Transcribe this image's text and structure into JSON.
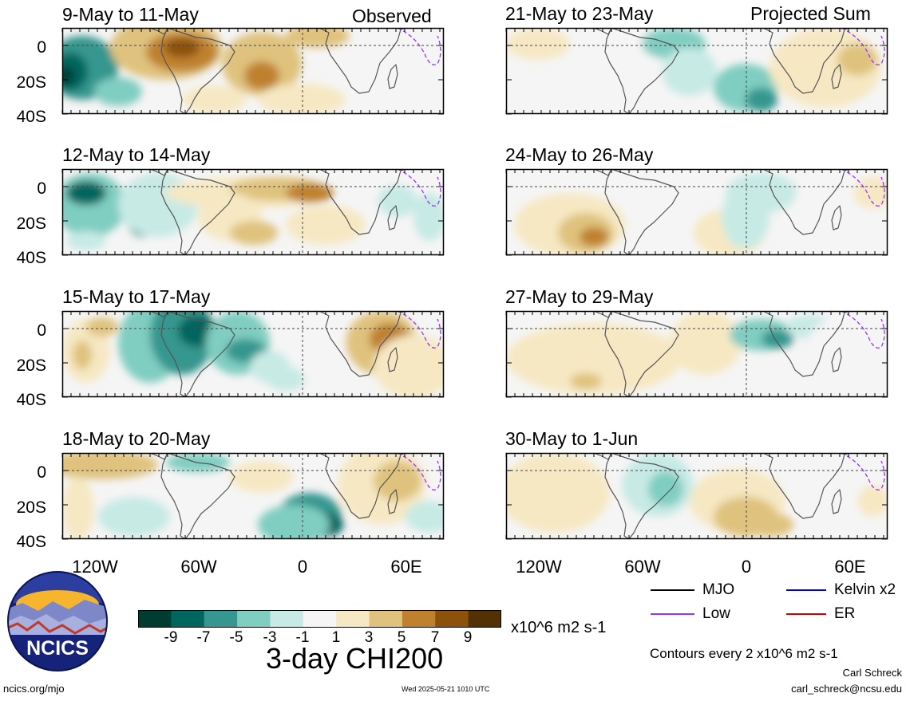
{
  "column_titles": {
    "left": "Observed",
    "right": "Projected Sum"
  },
  "panels_left": [
    {
      "title": "9-May to 11-May"
    },
    {
      "title": "12-May to 14-May"
    },
    {
      "title": "15-May to 17-May"
    },
    {
      "title": "18-May to 20-May"
    }
  ],
  "panels_right": [
    {
      "title": "21-May to 23-May"
    },
    {
      "title": "24-May to 26-May"
    },
    {
      "title": "27-May to 29-May"
    },
    {
      "title": "30-May to 1-Jun"
    }
  ],
  "lat_labels": [
    "0",
    "20S",
    "40S"
  ],
  "lon_labels": [
    "120W",
    "60W",
    "0",
    "60E"
  ],
  "colorbar": {
    "labels": [
      "-9",
      "-7",
      "-5",
      "-3",
      "-1",
      "1",
      "3",
      "5",
      "7",
      "9"
    ],
    "units": "x10^6 m2 s-1",
    "colors": [
      "#003c30",
      "#01665e",
      "#35978f",
      "#80cdc1",
      "#c7eae5",
      "#f5f5f5",
      "#f6e8c3",
      "#dfc27d",
      "#bf812d",
      "#8c510a",
      "#543005"
    ]
  },
  "main_title": "3-day CHI200",
  "legend": {
    "mjo": "MJO",
    "kelvin": "Kelvin x2",
    "low": "Low",
    "er": "ER",
    "colors": {
      "mjo": "#000000",
      "kelvin": "#0000cc",
      "low": "#9933ff",
      "er": "#cc0000"
    }
  },
  "contours_note": "Contours every 2 x10^6 m2 s-1",
  "author": "Carl Schreck",
  "email": "carl_schreck@ncsu.edu",
  "website": "ncics.org/mjo",
  "timestamp": "Wed 2025-05-21 1010 UTC",
  "logo_text": "NCICS"
}
